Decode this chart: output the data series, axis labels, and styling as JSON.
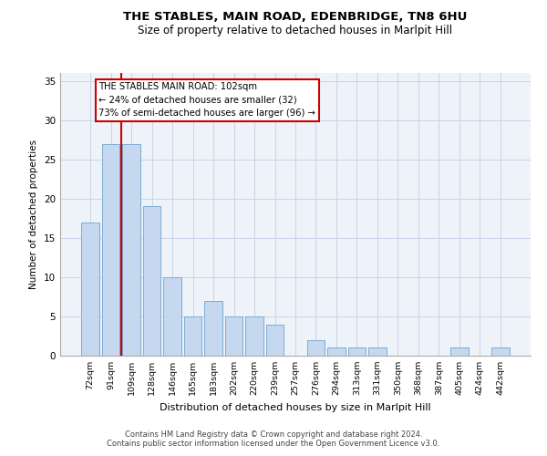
{
  "title": "THE STABLES, MAIN ROAD, EDENBRIDGE, TN8 6HU",
  "subtitle": "Size of property relative to detached houses in Marlpit Hill",
  "xlabel": "Distribution of detached houses by size in Marlpit Hill",
  "ylabel": "Number of detached properties",
  "categories": [
    "72sqm",
    "91sqm",
    "109sqm",
    "128sqm",
    "146sqm",
    "165sqm",
    "183sqm",
    "202sqm",
    "220sqm",
    "239sqm",
    "257sqm",
    "276sqm",
    "294sqm",
    "313sqm",
    "331sqm",
    "350sqm",
    "368sqm",
    "387sqm",
    "405sqm",
    "424sqm",
    "442sqm"
  ],
  "values": [
    17,
    27,
    27,
    19,
    10,
    5,
    7,
    5,
    5,
    4,
    0,
    2,
    1,
    1,
    1,
    0,
    0,
    0,
    1,
    0,
    1
  ],
  "bar_color": "#c5d8f0",
  "bar_edge_color": "#7aadd4",
  "vline_x": 1.5,
  "vline_color": "#cc0000",
  "annotation_line1": "THE STABLES MAIN ROAD: 102sqm",
  "annotation_line2": "← 24% of detached houses are smaller (32)",
  "annotation_line3": "73% of semi-detached houses are larger (96) →",
  "ylim": [
    0,
    36
  ],
  "yticks": [
    0,
    5,
    10,
    15,
    20,
    25,
    30,
    35
  ],
  "footer1": "Contains HM Land Registry data © Crown copyright and database right 2024.",
  "footer2": "Contains public sector information licensed under the Open Government Licence v3.0.",
  "bg_color": "#eef2f9",
  "grid_color": "#c8d4e8",
  "title_fontsize": 9.5,
  "subtitle_fontsize": 8.5
}
